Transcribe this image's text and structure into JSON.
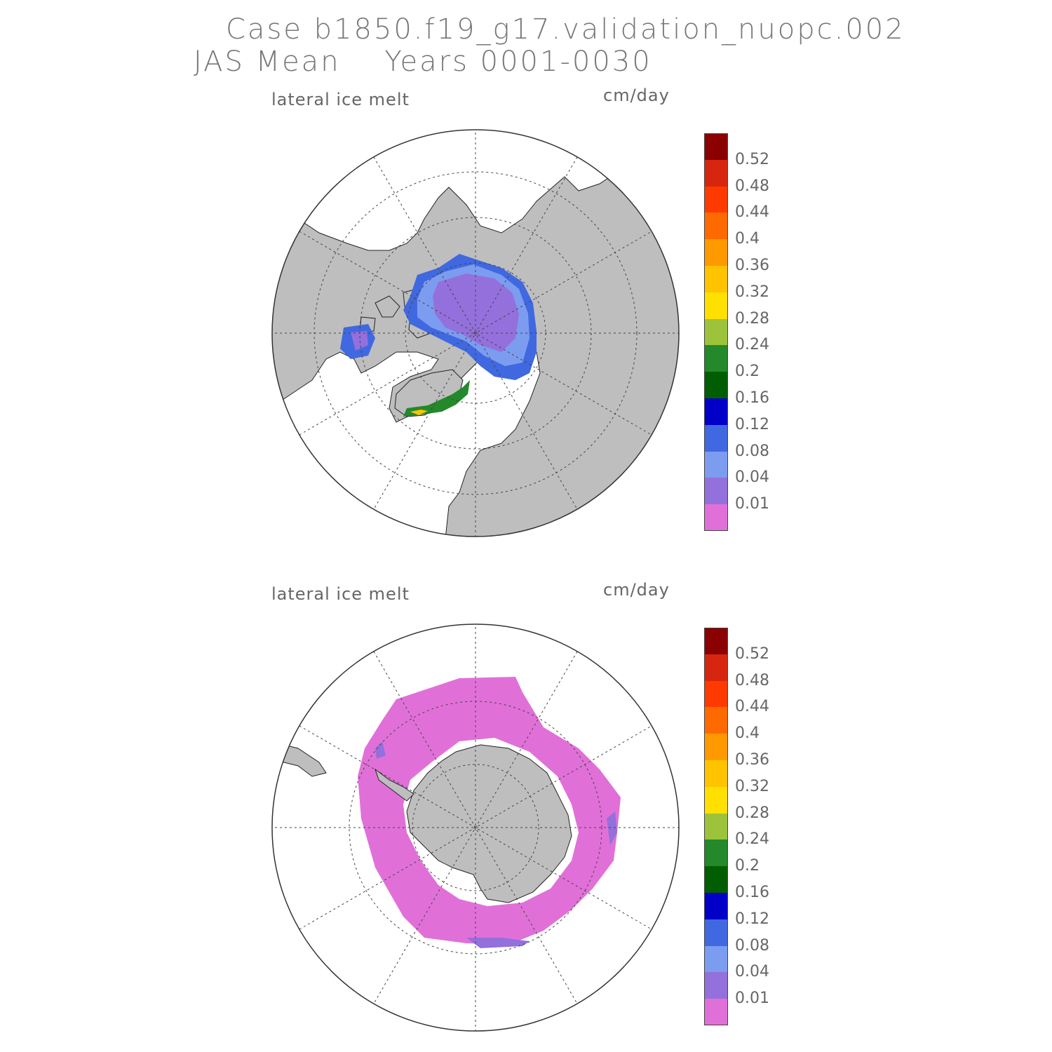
{
  "title": {
    "line1": "Case b1850.f19_g17.validation_nuopc.002",
    "line2": "JAS Mean    Years 0001-0030"
  },
  "panels": [
    {
      "id": "north",
      "hemisphere": "northern",
      "variable_label": "lateral ice melt",
      "unit_label": "cm/day"
    },
    {
      "id": "south",
      "hemisphere": "southern",
      "variable_label": "lateral ice melt",
      "unit_label": "cm/day"
    }
  ],
  "colorbar": {
    "ticks": [
      "0.52",
      "0.48",
      "0.44",
      "0.4",
      "0.36",
      "0.32",
      "0.28",
      "0.24",
      "0.2",
      "0.16",
      "0.12",
      "0.08",
      "0.04",
      "0.01"
    ],
    "colors": [
      "#8b0000",
      "#d7260f",
      "#ff3a00",
      "#ff6a00",
      "#ff9900",
      "#ffc300",
      "#ffe000",
      "#9dc33b",
      "#23892a",
      "#005e00",
      "#0000c8",
      "#4068e0",
      "#7c9cf0",
      "#9370db",
      "#e070d8"
    ]
  },
  "map_colors": {
    "land": "#bebebe",
    "ocean": "#ffffff",
    "grid": "#444444"
  }
}
